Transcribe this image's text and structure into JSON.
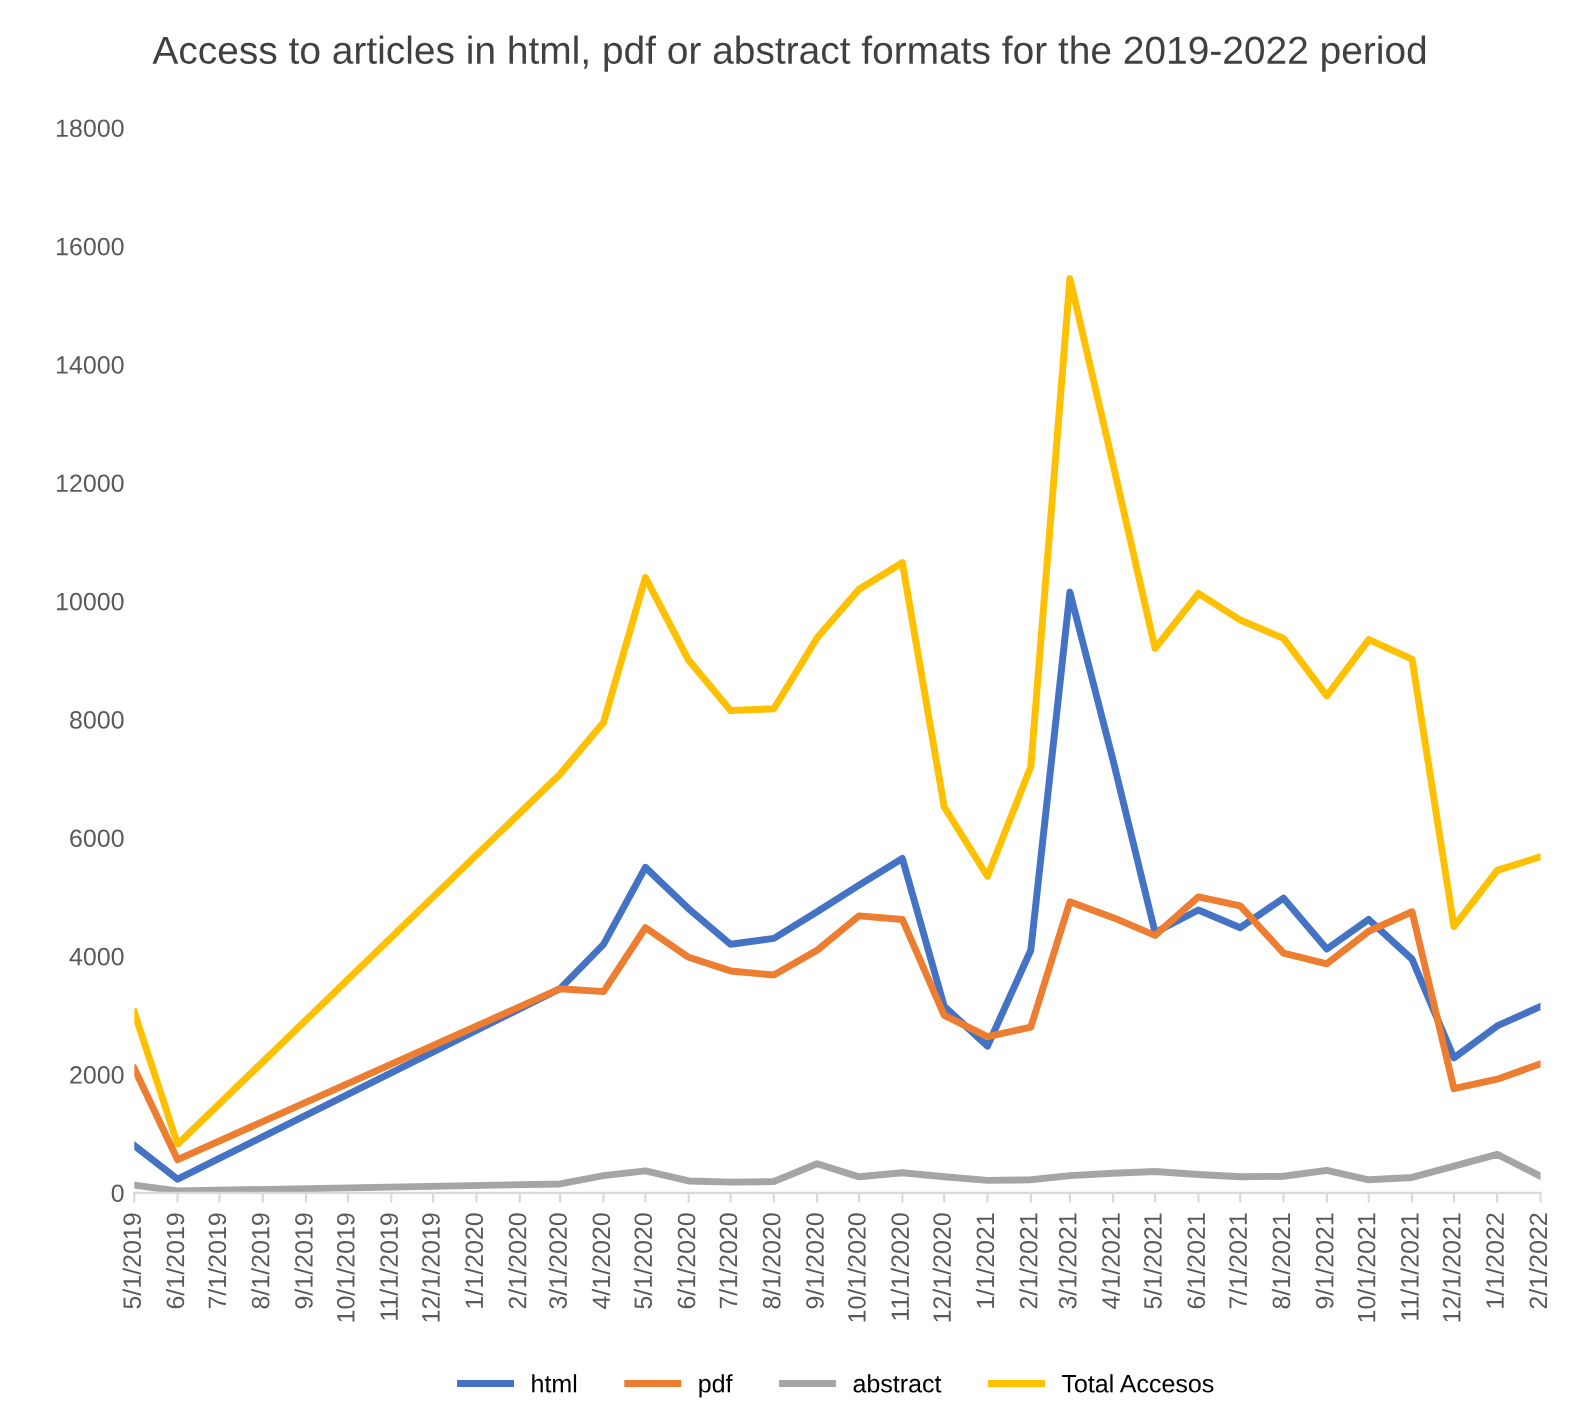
{
  "chart_data": {
    "type": "line",
    "title": "Access to articles in html, pdf or abstract formats for the 2019-2022 period",
    "x": [
      "2019-05-01",
      "2019-06-01",
      "2020-03-01",
      "2020-04-01",
      "2020-05-01",
      "2020-06-01",
      "2020-07-01",
      "2020-08-01",
      "2020-09-01",
      "2020-10-01",
      "2020-11-01",
      "2020-12-01",
      "2021-01-01",
      "2021-02-01",
      "2021-03-01",
      "2021-04-01",
      "2021-05-01",
      "2021-06-01",
      "2021-07-01",
      "2021-08-01",
      "2021-09-01",
      "2021-10-01",
      "2021-11-01",
      "2021-12-01",
      "2022-01-01",
      "2022-02-01"
    ],
    "series": [
      {
        "name": "html",
        "color": "#4472c4",
        "values": [
          800,
          230,
          3450,
          4200,
          5500,
          4800,
          4200,
          4300,
          4750,
          5200,
          5650,
          3150,
          2480,
          4100,
          10150,
          7300,
          4400,
          4780,
          4480,
          4980,
          4120,
          4620,
          3950,
          2280,
          2820,
          3150
        ]
      },
      {
        "name": "pdf",
        "color": "#ed7d31",
        "values": [
          2100,
          560,
          3450,
          3400,
          4480,
          3980,
          3750,
          3680,
          4100,
          4680,
          4620,
          3000,
          2640,
          2800,
          4920,
          4650,
          4350,
          5000,
          4850,
          4050,
          3870,
          4420,
          4750,
          1760,
          1920,
          2180
        ]
      },
      {
        "name": "abstract",
        "color": "#a5a5a5",
        "values": [
          130,
          30,
          150,
          290,
          370,
          200,
          180,
          190,
          490,
          270,
          340,
          270,
          210,
          220,
          290,
          330,
          360,
          310,
          270,
          280,
          380,
          220,
          260,
          450,
          650,
          280
        ]
      },
      {
        "name": "Total Accesos",
        "color": "#ffc000",
        "values": [
          3050,
          820,
          7080,
          7950,
          10400,
          9000,
          8150,
          8180,
          9380,
          10200,
          10650,
          6520,
          5350,
          7200,
          15450,
          12300,
          9200,
          10130,
          9680,
          9370,
          8400,
          9350,
          9020,
          4500,
          5450,
          5680
        ]
      }
    ],
    "xlim": [
      "2019-05-01",
      "2022-02-01"
    ],
    "xticks": [
      {
        "value": "2019-05-01",
        "label": "5/1/2019"
      },
      {
        "value": "2019-06-01",
        "label": "6/1/2019"
      },
      {
        "value": "2019-07-01",
        "label": "7/1/2019"
      },
      {
        "value": "2019-08-01",
        "label": "8/1/2019"
      },
      {
        "value": "2019-09-01",
        "label": "9/1/2019"
      },
      {
        "value": "2019-10-01",
        "label": "10/1/2019"
      },
      {
        "value": "2019-11-01",
        "label": "11/1/2019"
      },
      {
        "value": "2019-12-01",
        "label": "12/1/2019"
      },
      {
        "value": "2020-01-01",
        "label": "1/1/2020"
      },
      {
        "value": "2020-02-01",
        "label": "2/1/2020"
      },
      {
        "value": "2020-03-01",
        "label": "3/1/2020"
      },
      {
        "value": "2020-04-01",
        "label": "4/1/2020"
      },
      {
        "value": "2020-05-01",
        "label": "5/1/2020"
      },
      {
        "value": "2020-06-01",
        "label": "6/1/2020"
      },
      {
        "value": "2020-07-01",
        "label": "7/1/2020"
      },
      {
        "value": "2020-08-01",
        "label": "8/1/2020"
      },
      {
        "value": "2020-09-01",
        "label": "9/1/2020"
      },
      {
        "value": "2020-10-01",
        "label": "10/1/2020"
      },
      {
        "value": "2020-11-01",
        "label": "11/1/2020"
      },
      {
        "value": "2020-12-01",
        "label": "12/1/2020"
      },
      {
        "value": "2021-01-01",
        "label": "1/1/2021"
      },
      {
        "value": "2021-02-01",
        "label": "2/1/2021"
      },
      {
        "value": "2021-03-01",
        "label": "3/1/2021"
      },
      {
        "value": "2021-04-01",
        "label": "4/1/2021"
      },
      {
        "value": "2021-05-01",
        "label": "5/1/2021"
      },
      {
        "value": "2021-06-01",
        "label": "6/1/2021"
      },
      {
        "value": "2021-07-01",
        "label": "7/1/2021"
      },
      {
        "value": "2021-08-01",
        "label": "8/1/2021"
      },
      {
        "value": "2021-09-01",
        "label": "9/1/2021"
      },
      {
        "value": "2021-10-01",
        "label": "10/1/2021"
      },
      {
        "value": "2021-11-01",
        "label": "11/1/2021"
      },
      {
        "value": "2021-12-01",
        "label": "12/1/2021"
      },
      {
        "value": "2022-01-01",
        "label": "1/1/2022"
      },
      {
        "value": "2022-02-01",
        "label": "2/1/2022"
      }
    ],
    "ylim": [
      0,
      18000
    ],
    "yticks": [
      0,
      2000,
      4000,
      6000,
      8000,
      10000,
      12000,
      14000,
      16000,
      18000
    ],
    "grid": false,
    "legend": "bottom",
    "marker": "none",
    "line_style": "solid"
  }
}
